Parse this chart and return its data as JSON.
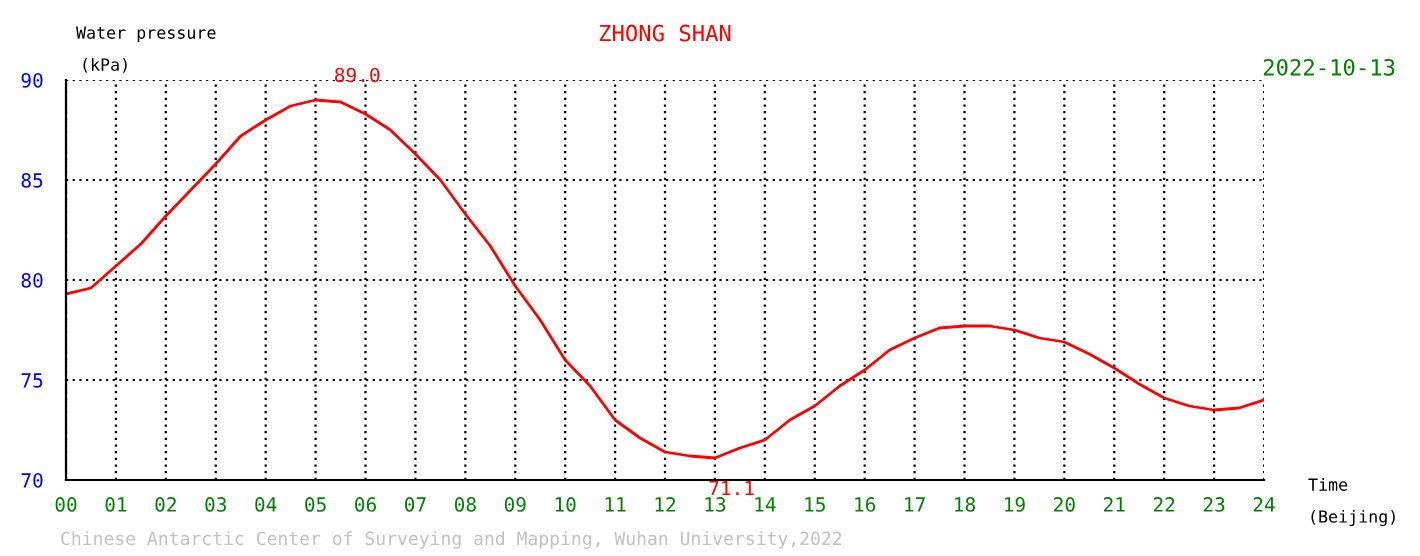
{
  "chart_data": {
    "type": "line",
    "title": "ZHONG SHAN",
    "subtitle": "2022-10-13",
    "xlabel": "Time\n(Beijing)",
    "ylabel": "Water pressure\n(kPa)",
    "x": [
      0,
      0.5,
      1,
      1.5,
      2,
      2.5,
      3,
      3.5,
      4,
      4.5,
      5,
      5.5,
      6,
      6.5,
      7,
      7.5,
      8,
      8.5,
      9,
      9.5,
      10,
      10.5,
      11,
      11.5,
      12,
      12.5,
      13,
      13.5,
      14,
      14.5,
      15,
      15.5,
      16,
      16.5,
      17,
      17.5,
      18,
      18.5,
      19,
      19.5,
      20,
      20.5,
      21,
      21.5,
      22,
      22.5,
      23,
      23.5,
      24
    ],
    "series": [
      {
        "color": "#ff0000",
        "values": [
          79.3,
          79.6,
          80.7,
          81.8,
          83.2,
          84.5,
          85.8,
          87.2,
          88.0,
          88.7,
          89.0,
          88.9,
          88.3,
          87.5,
          86.3,
          85.0,
          83.3,
          81.7,
          79.7,
          78.0,
          76.0,
          74.7,
          73.0,
          72.1,
          71.4,
          71.2,
          71.1,
          71.6,
          72.0,
          73.0,
          73.7,
          74.7,
          75.5,
          76.5,
          77.1,
          77.6,
          77.7,
          77.7,
          77.5,
          77.1,
          76.9,
          76.3,
          75.6,
          74.8,
          74.1,
          73.7,
          73.5,
          73.6,
          74.0
        ]
      }
    ],
    "xlim": [
      0,
      24
    ],
    "xticks": [
      {
        "value": 0,
        "label": "00"
      },
      {
        "value": 1,
        "label": "01"
      },
      {
        "value": 2,
        "label": "02"
      },
      {
        "value": 3,
        "label": "03"
      },
      {
        "value": 4,
        "label": "04"
      },
      {
        "value": 5,
        "label": "05"
      },
      {
        "value": 6,
        "label": "06"
      },
      {
        "value": 7,
        "label": "07"
      },
      {
        "value": 8,
        "label": "08"
      },
      {
        "value": 9,
        "label": "09"
      },
      {
        "value": 10,
        "label": "10"
      },
      {
        "value": 11,
        "label": "11"
      },
      {
        "value": 12,
        "label": "12"
      },
      {
        "value": 13,
        "label": "13"
      },
      {
        "value": 14,
        "label": "14"
      },
      {
        "value": 15,
        "label": "15"
      },
      {
        "value": 16,
        "label": "16"
      },
      {
        "value": 17,
        "label": "17"
      },
      {
        "value": 18,
        "label": "18"
      },
      {
        "value": 19,
        "label": "19"
      },
      {
        "value": 20,
        "label": "20"
      },
      {
        "value": 21,
        "label": "21"
      },
      {
        "value": 22,
        "label": "22"
      },
      {
        "value": 23,
        "label": "23"
      },
      {
        "value": 24,
        "label": "24"
      }
    ],
    "ylim": [
      70,
      90
    ],
    "yticks": [
      70,
      75,
      80,
      85,
      90
    ],
    "grid": true,
    "marker": "none",
    "line_style": "solid",
    "annotations": [
      {
        "text": "89.0",
        "x": 5.5,
        "y": 89.0
      },
      {
        "text": "71.1",
        "x": 13,
        "y": 71.1
      },
      "Chinese Antarctic Center of Surveying and Mapping, Wuhan University,2022"
    ]
  }
}
